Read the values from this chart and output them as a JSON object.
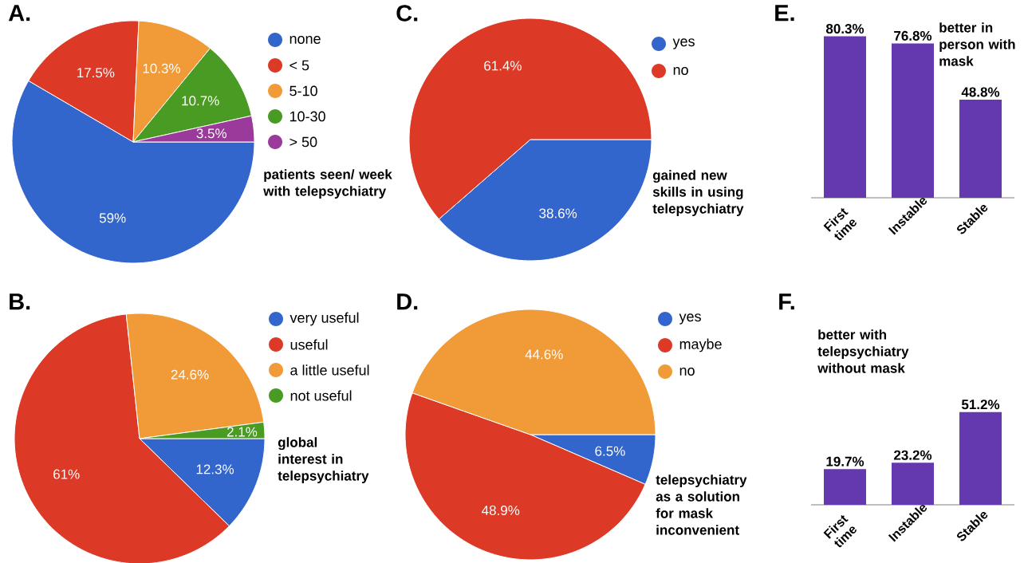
{
  "chart_data": [
    {
      "type": "pie",
      "title": "A.",
      "subtitle": "patients seen/ week with telepsychiatry",
      "categories": [
        "none",
        "< 5",
        "5-10",
        "10-30",
        "> 50"
      ],
      "values": [
        59,
        17.5,
        10.3,
        10.7,
        3.5
      ],
      "colors": [
        "#3366cc",
        "#dc3a26",
        "#f19b38",
        "#4a9b23",
        "#9a3a9a"
      ],
      "value_labels": [
        "59%",
        "17.5%",
        "10.3%",
        "10.7%",
        "3.5%"
      ],
      "legend": "right"
    },
    {
      "type": "pie",
      "title": "C.",
      "subtitle": "gained new skills in using telepsychiatry",
      "categories": [
        "yes",
        "no"
      ],
      "values": [
        38.6,
        61.4
      ],
      "colors": [
        "#3366cc",
        "#dc3a26"
      ],
      "value_labels": [
        "38.6%",
        "61.4%"
      ],
      "legend": "right"
    },
    {
      "type": "bar",
      "title": "E.",
      "subtitle": "better in person with mask",
      "categories": [
        "First time",
        "Instable",
        "Stable"
      ],
      "values": [
        80.3,
        76.8,
        48.8
      ],
      "color": "#6439b0",
      "value_labels": [
        "80.3%",
        "76.8%",
        "48.8%"
      ],
      "tick_labels": "x"
    },
    {
      "type": "pie",
      "title": "B.",
      "subtitle": "global interest in telepsychiatry",
      "categories": [
        "very useful",
        "useful",
        "a little useful",
        "not useful"
      ],
      "values": [
        12.3,
        61,
        24.6,
        2.1
      ],
      "colors": [
        "#3366cc",
        "#dc3a26",
        "#f19b38",
        "#4a9b23"
      ],
      "value_labels": [
        "12.3%",
        "61%",
        "24.6%",
        "2.1%"
      ],
      "legend": "right"
    },
    {
      "type": "pie",
      "title": "D.",
      "subtitle": "telepsychiatry as a solution for mask inconvenient",
      "categories": [
        "yes",
        "maybe",
        "no"
      ],
      "values": [
        6.5,
        48.9,
        44.6
      ],
      "colors": [
        "#3366cc",
        "#dc3a26",
        "#f19b38"
      ],
      "value_labels": [
        "6.5%",
        "48.9%",
        "44.6%"
      ],
      "legend": "right"
    },
    {
      "type": "bar",
      "title": "F.",
      "subtitle": "better with telepsychiatry without mask",
      "categories": [
        "First time",
        "Instable",
        "Stable"
      ],
      "values": [
        19.7,
        23.2,
        51.2
      ],
      "color": "#6439b0",
      "value_labels": [
        "19.7%",
        "23.2%",
        "51.2%"
      ],
      "tick_labels": "x"
    }
  ]
}
